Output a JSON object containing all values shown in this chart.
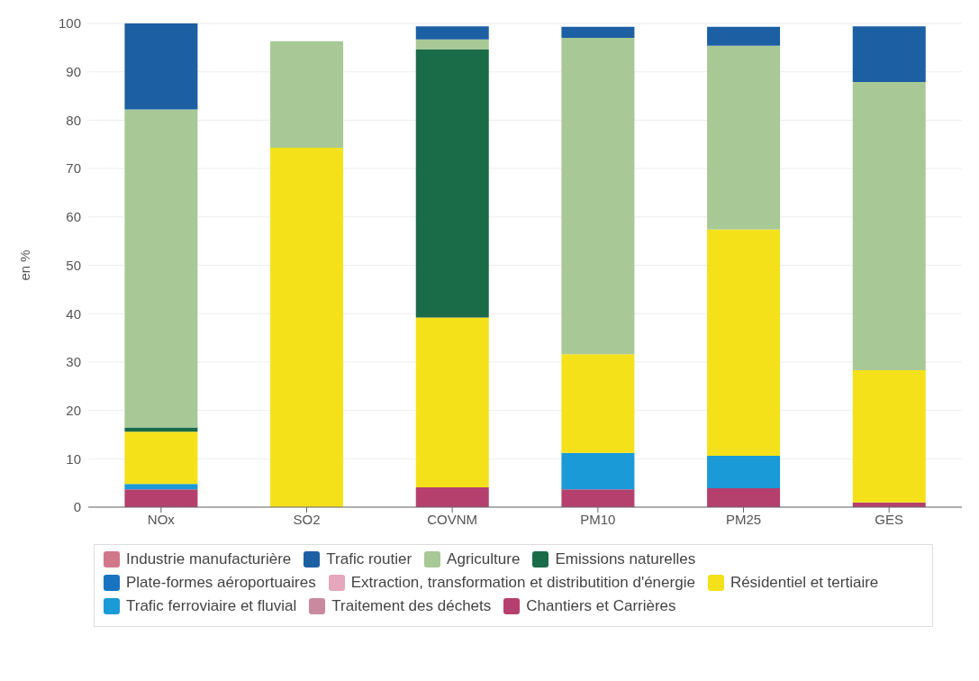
{
  "chart_data": {
    "type": "bar",
    "stacked": true,
    "ylabel": "en %",
    "categories": [
      "NOx",
      "SO2",
      "COVNM",
      "PM10",
      "PM25",
      "GES"
    ],
    "series": [
      {
        "name": "Chantiers et Carrières",
        "color": "#b5406e",
        "values": [
          3.7,
          null,
          4.1,
          3.7,
          3.9,
          1.0
        ]
      },
      {
        "name": "Traitement des déchets",
        "color": "#c98aa0",
        "values": [
          null,
          null,
          null,
          null,
          null,
          null
        ]
      },
      {
        "name": "Trafic ferroviaire et fluvial",
        "color": "#1a9ad6",
        "values": [
          1.1,
          null,
          null,
          7.5,
          6.7,
          null
        ]
      },
      {
        "name": "Résidentiel et tertiaire",
        "color": "#f5e11a",
        "values": [
          10.8,
          74.3,
          35.1,
          20.4,
          46.8,
          27.3
        ]
      },
      {
        "name": "Extraction, transformation et distributition d'énergie",
        "color": "#e4a7bb",
        "values": [
          null,
          null,
          null,
          null,
          null,
          null
        ]
      },
      {
        "name": "Plate-formes aéroportuaires",
        "color": "#1874c0",
        "values": [
          null,
          null,
          null,
          null,
          null,
          null
        ]
      },
      {
        "name": "Emissions naturelles",
        "color": "#1a6b48",
        "values": [
          0.9,
          null,
          55.4,
          null,
          null,
          null
        ]
      },
      {
        "name": "Agriculture",
        "color": "#a8c896",
        "values": [
          65.7,
          22.0,
          2.1,
          65.4,
          38.0,
          59.6
        ]
      },
      {
        "name": "Trafic routier",
        "color": "#1c5fa3",
        "values": [
          17.8,
          null,
          2.7,
          2.3,
          3.9,
          11.5
        ]
      },
      {
        "name": "Industrie manufacturière",
        "color": "#d0788a",
        "values": [
          null,
          null,
          null,
          null,
          null,
          null
        ]
      }
    ],
    "ylim": [
      0,
      100
    ],
    "yticks": [
      0,
      10,
      20,
      30,
      40,
      50,
      60,
      70,
      80,
      90,
      100
    ],
    "grid": "y",
    "legend": "bottom"
  }
}
